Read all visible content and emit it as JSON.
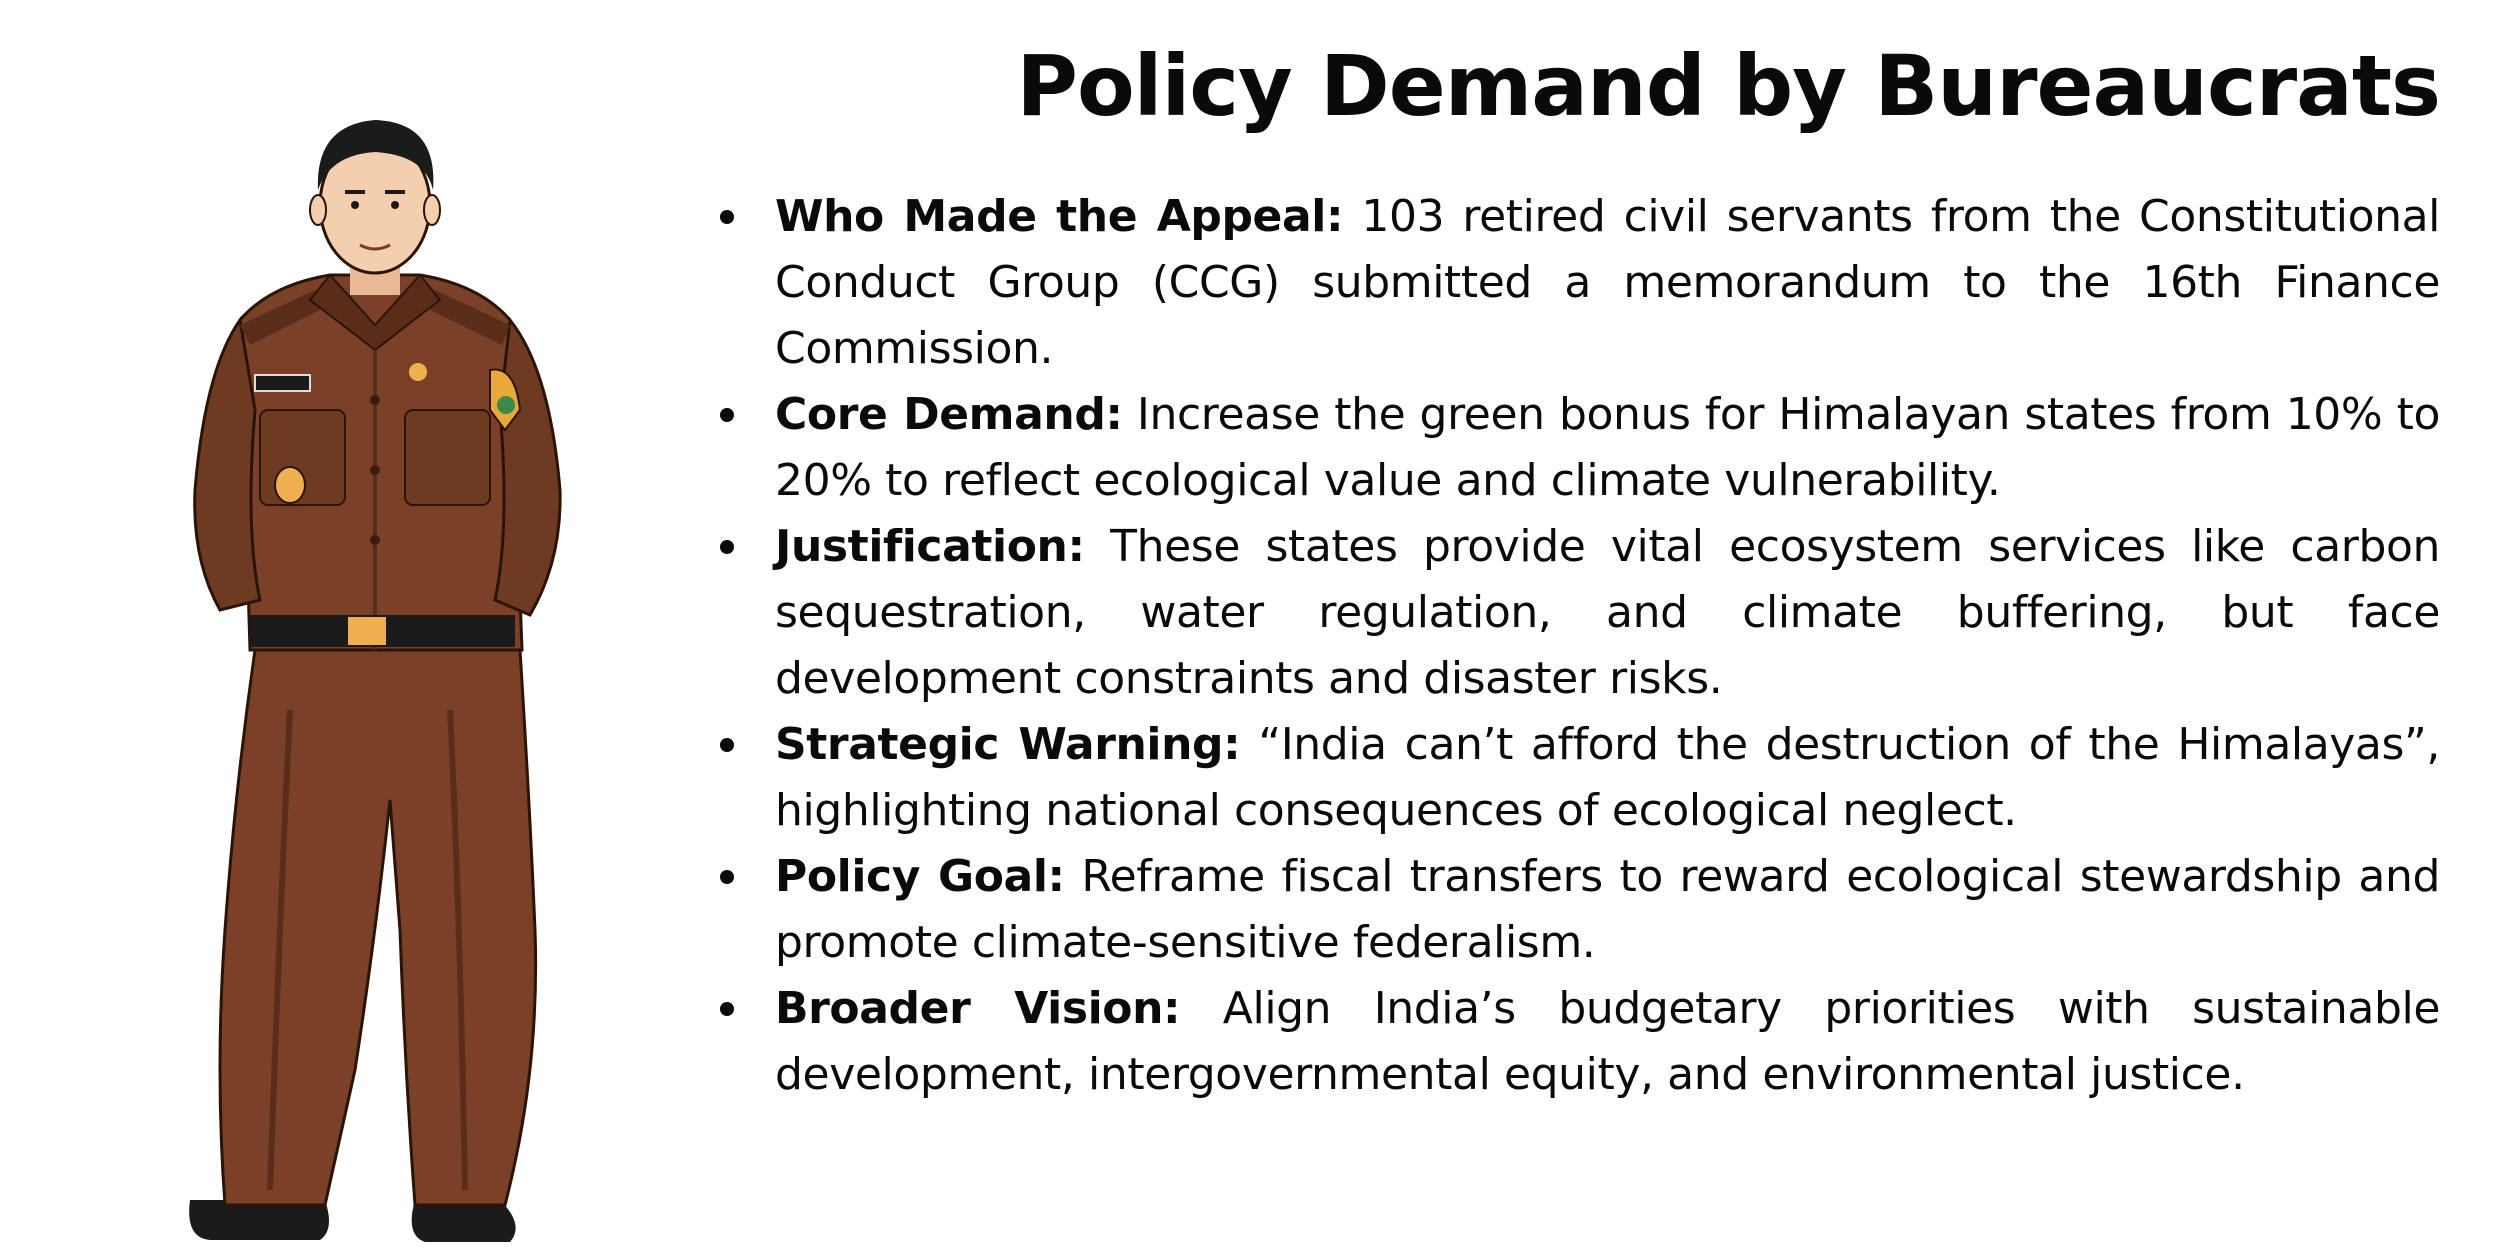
{
  "title": "Policy Demand by Bureaucrats",
  "illustration": {
    "subject": "officer-in-brown-uniform",
    "colors": {
      "uniform": "#7a4128",
      "uniform_shadow": "#5a2d1a",
      "skin": "#f4cfae",
      "hair": "#1b1b1b",
      "belt": "#1b1b1b",
      "buckle": "#f0b050",
      "badge": "#e8a93a"
    }
  },
  "bullets": [
    {
      "label": "Who Made the Appeal:",
      "text": " 103 retired civil servants from the Constitutional Conduct Group (CCG) submitted a memorandum to the 16th Finance Commission."
    },
    {
      "label": "Core Demand:",
      "text": " Increase the green bonus for Himalayan states from 10% to 20% to reflect ecological value and climate vulnerability."
    },
    {
      "label": "Justification:",
      "text": " These states provide vital ecosystem services like carbon sequestration, water regulation, and climate buffering, but face development constraints and disaster risks."
    },
    {
      "label": "Strategic Warning:",
      "text": " “India can’t afford the destruction of the Himalayas”, highlighting national consequences of ecological neglect."
    },
    {
      "label": "Policy Goal:",
      "text": " Reframe fiscal transfers to reward ecological stewardship and promote climate-sensitive federalism."
    },
    {
      "label": "Broader Vision:",
      "text": " Align India’s budgetary priorities with sustainable development, intergovernmental equity, and environmental justice."
    }
  ]
}
